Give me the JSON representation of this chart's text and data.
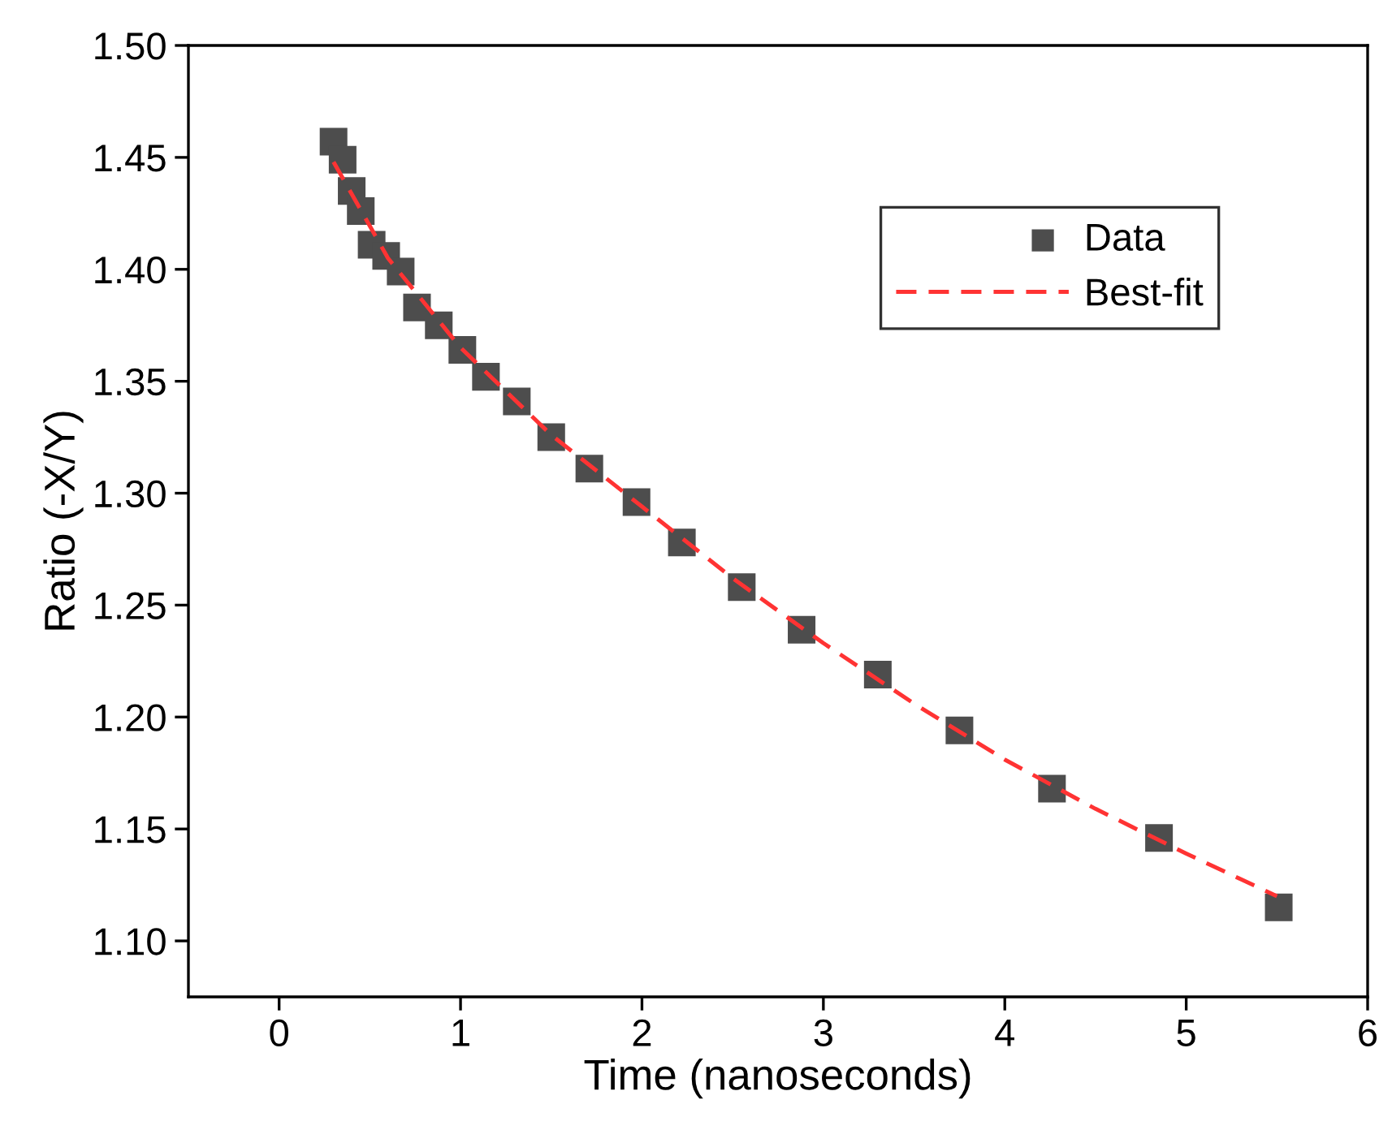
{
  "chart_data": {
    "type": "scatter",
    "xlabel": "Time (nanoseconds)",
    "ylabel": "Ratio (-X/Y)",
    "xlim": [
      -0.5,
      6
    ],
    "ylim": [
      1.075,
      1.5
    ],
    "xticks": [
      0,
      1,
      2,
      3,
      4,
      5,
      6
    ],
    "yticks": [
      {
        "value": 1.1,
        "label": "1.10"
      },
      {
        "value": 1.15,
        "label": "1.15"
      },
      {
        "value": 1.2,
        "label": "1.20"
      },
      {
        "value": 1.25,
        "label": "1.25"
      },
      {
        "value": 1.3,
        "label": "1.30"
      },
      {
        "value": 1.35,
        "label": "1.35"
      },
      {
        "value": 1.4,
        "label": "1.40"
      },
      {
        "value": 1.45,
        "label": "1.45"
      },
      {
        "value": 1.5,
        "label": "1.50"
      }
    ],
    "grid": false,
    "legend": "top right",
    "series": [
      {
        "name": "Data",
        "type": "scatter",
        "marker": "square",
        "color": "#4d4d4d",
        "x": [
          0.3,
          0.35,
          0.4,
          0.45,
          0.51,
          0.59,
          0.67,
          0.76,
          0.88,
          1.01,
          1.14,
          1.31,
          1.5,
          1.71,
          1.97,
          2.22,
          2.55,
          2.88,
          3.3,
          3.75,
          4.26,
          4.85,
          5.51
        ],
        "values": [
          1.457,
          1.449,
          1.435,
          1.426,
          1.411,
          1.406,
          1.399,
          1.383,
          1.375,
          1.364,
          1.352,
          1.341,
          1.325,
          1.311,
          1.296,
          1.278,
          1.258,
          1.239,
          1.219,
          1.194,
          1.168,
          1.146,
          1.115
        ]
      },
      {
        "name": "Best-fit",
        "type": "line",
        "line_style": "dashed",
        "color": "#ff3333",
        "x": [
          0.3,
          0.6,
          1.0,
          1.5,
          2.0,
          2.5,
          3.0,
          3.5,
          4.0,
          4.5,
          5.0,
          5.5
        ],
        "values": [
          1.448,
          1.405,
          1.365,
          1.326,
          1.294,
          1.262,
          1.233,
          1.206,
          1.181,
          1.159,
          1.139,
          1.12
        ]
      }
    ]
  }
}
